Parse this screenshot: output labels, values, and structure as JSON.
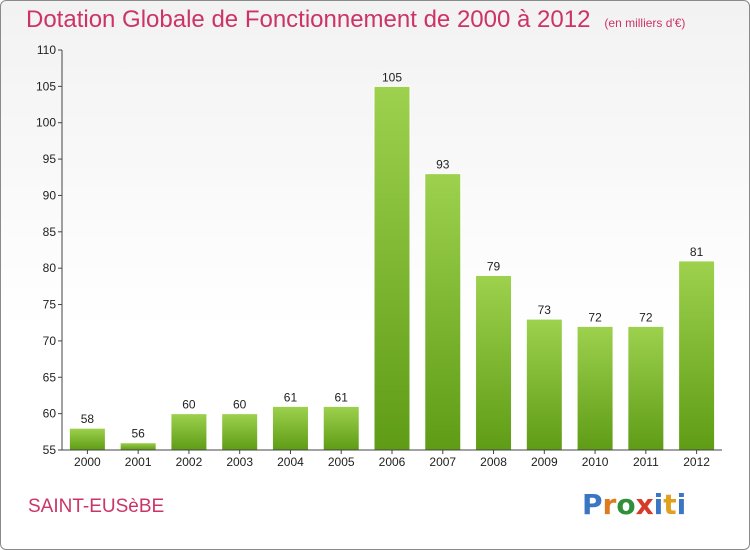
{
  "header": {
    "title": "Dotation Globale de Fonctionnement de 2000 à 2012",
    "subtitle": "(en milliers d'€)"
  },
  "footer": {
    "commune": "SAINT-EUSèBE",
    "logo": "Proxiti"
  },
  "colors": {
    "accent": "#cc3366",
    "bar_top": "#9dd14e",
    "bar_bottom": "#5f9c16",
    "logo_letters": [
      "#3a76c4",
      "#e07a1e",
      "#2f8f3a",
      "#d83a2a",
      "#3a76c4",
      "#e0a11e",
      "#3a76c4"
    ]
  },
  "chart_data": {
    "type": "bar",
    "title": "Dotation Globale de Fonctionnement de 2000 à 2012",
    "subtitle": "(en milliers d'€)",
    "categories": [
      "2000",
      "2001",
      "2002",
      "2003",
      "2004",
      "2005",
      "2006",
      "2007",
      "2008",
      "2009",
      "2010",
      "2011",
      "2012"
    ],
    "values": [
      58,
      56,
      60,
      60,
      61,
      61,
      105,
      93,
      79,
      73,
      72,
      72,
      81
    ],
    "ylim": [
      55,
      110
    ],
    "yticks": [
      55,
      60,
      65,
      70,
      75,
      80,
      85,
      90,
      95,
      100,
      105,
      110
    ],
    "grid": false,
    "legend": "none"
  }
}
